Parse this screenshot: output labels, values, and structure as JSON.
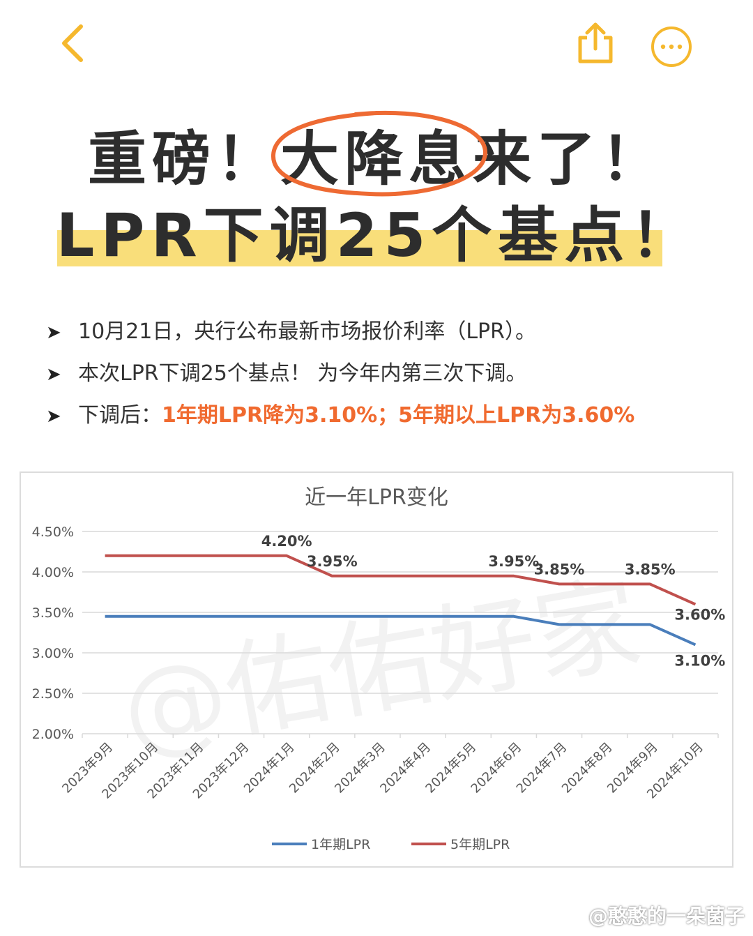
{
  "headline": {
    "line1_before": "重磅！",
    "line1_highlight": "大降息",
    "line1_after": "来了！",
    "line2": "LPR下调25个基点！"
  },
  "bullets": [
    {
      "text": "10月21日，央行公布最新市场报价利率（LPR）。",
      "accent": ""
    },
    {
      "text": "本次LPR下调25个基点！ 为今年内第三次下调。",
      "accent": ""
    },
    {
      "text": "下调后：",
      "accent": "1年期LPR降为3.10%；5年期以上LPR为3.60%"
    }
  ],
  "bullet_marker": "➤",
  "icons": {
    "back": "chevron-left-icon",
    "share": "share-icon",
    "more": "more-dots-icon"
  },
  "colors": {
    "accent": "#f5b82e",
    "highlight": "#f9de7a",
    "orange": "#f06a2f",
    "series_1y": "#4a7ebb",
    "series_5y": "#c0504d"
  },
  "chart_data": {
    "type": "line",
    "title": "近一年LPR变化",
    "categories": [
      "2023年9月",
      "2023年10月",
      "2023年11月",
      "2023年12月",
      "2024年1月",
      "2024年2月",
      "2024年3月",
      "2024年4月",
      "2024年5月",
      "2024年6月",
      "2024年7月",
      "2024年8月",
      "2024年9月",
      "2024年10月"
    ],
    "ylim": [
      2.0,
      4.5
    ],
    "yticks": [
      "2.00%",
      "2.50%",
      "3.00%",
      "3.50%",
      "4.00%",
      "4.50%"
    ],
    "grid": true,
    "legend": "bottom",
    "series": [
      {
        "name": "1年期LPR",
        "values": [
          3.45,
          3.45,
          3.45,
          3.45,
          3.45,
          3.45,
          3.45,
          3.45,
          3.45,
          3.45,
          3.35,
          3.35,
          3.35,
          3.1
        ]
      },
      {
        "name": "5年期LPR",
        "values": [
          4.2,
          4.2,
          4.2,
          4.2,
          4.2,
          3.95,
          3.95,
          3.95,
          3.95,
          3.95,
          3.85,
          3.85,
          3.85,
          3.6
        ]
      }
    ],
    "annotations": [
      {
        "series": 1,
        "index": 4,
        "text": "4.20%"
      },
      {
        "series": 1,
        "index": 5,
        "text": "3.95%"
      },
      {
        "series": 1,
        "index": 9,
        "text": "3.95%"
      },
      {
        "series": 1,
        "index": 10,
        "text": "3.85%"
      },
      {
        "series": 1,
        "index": 12,
        "text": "3.85%"
      },
      {
        "series": 1,
        "index": 13,
        "text": "3.60%"
      },
      {
        "series": 0,
        "index": 13,
        "text": "3.10%"
      }
    ]
  },
  "watermark_chart": "@佑佑好家",
  "watermark_footer": "@憨憨的一朵菌子"
}
